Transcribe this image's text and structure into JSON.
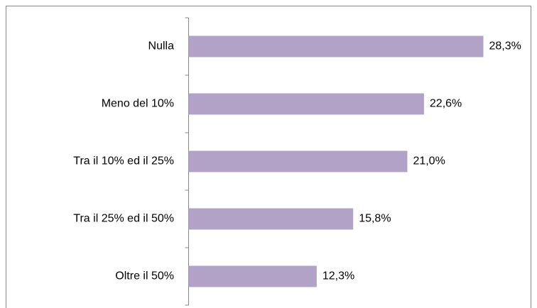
{
  "chart_data": {
    "type": "hbar",
    "categories": [
      "Nulla",
      "Meno del 10%",
      "Tra il 10% ed il 25%",
      "Tra il 25% ed il 50%",
      "Oltre il 50%"
    ],
    "values": [
      28.3,
      22.6,
      21.0,
      15.8,
      12.3
    ],
    "value_labels": [
      "28,3%",
      "22,6%",
      "21,0%",
      "15,8%",
      "12,3%"
    ],
    "color": "#b3a2c7"
  }
}
